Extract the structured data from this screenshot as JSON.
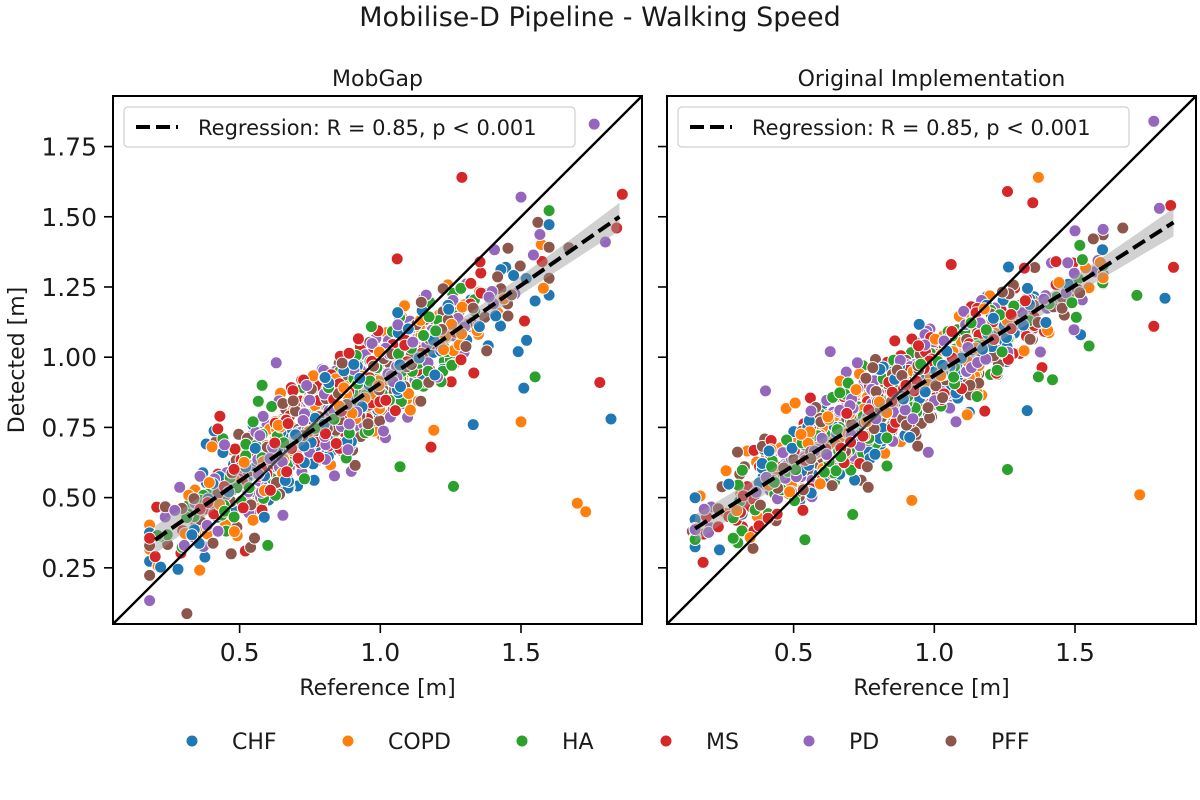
{
  "figure": {
    "title": "Mobilise-D Pipeline - Walking Speed"
  },
  "colors": {
    "CHF": "#1f77b4",
    "COPD": "#ff7f0e",
    "HA": "#2ca02c",
    "MS": "#d62728",
    "PD": "#9467bd",
    "PFF": "#8c564b"
  },
  "legend": {
    "placement": "bottom-center",
    "entries": [
      "CHF",
      "COPD",
      "HA",
      "MS",
      "PD",
      "PFF"
    ]
  },
  "chart_data": [
    {
      "type": "scatter",
      "title": "MobGap",
      "xlabel": "Reference [m]",
      "ylabel": "Detected [m]",
      "xlim": [
        0.05,
        1.93
      ],
      "ylim": [
        0.05,
        1.93
      ],
      "xticks": [
        "0.5",
        "1.0",
        "1.5"
      ],
      "yticks": [
        "0.25",
        "0.50",
        "0.75",
        "1.00",
        "1.25",
        "1.50",
        "1.75"
      ],
      "identity_line": true,
      "regression": {
        "label": "Regression: R = 0.85, p < 0.001",
        "x_start": 0.2,
        "y_start": 0.35,
        "x_end": 1.85,
        "y_end": 1.5,
        "ci_half_width_start": 0.025,
        "ci_half_width_end": 0.05,
        "legend_placement": "upper-left"
      },
      "generated_cluster": {
        "n_per_group": 200,
        "x_mean": 0.85,
        "x_sd": 0.29,
        "slope": 0.7,
        "intercept": 0.21,
        "residual_sd": 0.085,
        "x_range": [
          0.18,
          1.6
        ]
      },
      "outliers": [
        {
          "group": "COPD",
          "x": 1.7,
          "y": 0.48
        },
        {
          "group": "COPD",
          "x": 1.73,
          "y": 0.45
        },
        {
          "group": "CHF",
          "x": 1.82,
          "y": 0.78
        },
        {
          "group": "MS",
          "x": 1.78,
          "y": 0.91
        },
        {
          "group": "PD",
          "x": 1.76,
          "y": 1.83
        },
        {
          "group": "MS",
          "x": 1.86,
          "y": 1.58
        },
        {
          "group": "PD",
          "x": 1.8,
          "y": 1.41
        },
        {
          "group": "MS",
          "x": 1.84,
          "y": 1.46
        },
        {
          "group": "MS",
          "x": 1.29,
          "y": 1.64
        },
        {
          "group": "PD",
          "x": 1.5,
          "y": 1.57
        },
        {
          "group": "PFF",
          "x": 1.56,
          "y": 1.48
        },
        {
          "group": "HA",
          "x": 1.26,
          "y": 0.54
        },
        {
          "group": "HA",
          "x": 1.07,
          "y": 0.61
        },
        {
          "group": "CHF",
          "x": 1.33,
          "y": 0.76
        },
        {
          "group": "COPD",
          "x": 1.5,
          "y": 0.77
        },
        {
          "group": "CHF",
          "x": 1.51,
          "y": 0.89
        },
        {
          "group": "HA",
          "x": 1.55,
          "y": 0.93
        },
        {
          "group": "CHF",
          "x": 1.55,
          "y": 1.2
        },
        {
          "group": "CHF",
          "x": 1.49,
          "y": 1.02
        },
        {
          "group": "CHF",
          "x": 1.52,
          "y": 1.06
        },
        {
          "group": "MS",
          "x": 1.18,
          "y": 0.68
        },
        {
          "group": "COPD",
          "x": 1.19,
          "y": 0.74
        },
        {
          "group": "MS",
          "x": 0.2,
          "y": 0.29
        },
        {
          "group": "MS",
          "x": 0.43,
          "y": 0.79
        },
        {
          "group": "PFF",
          "x": 0.47,
          "y": 0.3
        },
        {
          "group": "MS",
          "x": 0.52,
          "y": 0.31
        },
        {
          "group": "HA",
          "x": 0.6,
          "y": 0.33
        },
        {
          "group": "HA",
          "x": 0.58,
          "y": 0.9
        },
        {
          "group": "PD",
          "x": 0.63,
          "y": 0.98
        },
        {
          "group": "MS",
          "x": 1.06,
          "y": 1.35
        },
        {
          "group": "PFF",
          "x": 1.67,
          "y": 1.39
        }
      ]
    },
    {
      "type": "scatter",
      "title": "Original Implementation",
      "xlabel": "Reference [m]",
      "ylabel": "",
      "xlim": [
        0.05,
        1.93
      ],
      "ylim": [
        0.05,
        1.93
      ],
      "xticks": [
        "0.5",
        "1.0",
        "1.5"
      ],
      "yticks": [],
      "identity_line": true,
      "regression": {
        "label": "Regression: R = 0.85, p < 0.001",
        "x_start": 0.15,
        "y_start": 0.39,
        "x_end": 1.85,
        "y_end": 1.48,
        "ci_half_width_start": 0.025,
        "ci_half_width_end": 0.05,
        "legend_placement": "upper-left"
      },
      "generated_cluster": {
        "n_per_group": 200,
        "x_mean": 0.85,
        "x_sd": 0.29,
        "slope": 0.64,
        "intercept": 0.3,
        "residual_sd": 0.085,
        "x_range": [
          0.15,
          1.6
        ]
      },
      "outliers": [
        {
          "group": "COPD",
          "x": 1.73,
          "y": 0.51
        },
        {
          "group": "PD",
          "x": 1.78,
          "y": 1.84
        },
        {
          "group": "COPD",
          "x": 1.37,
          "y": 1.64
        },
        {
          "group": "MS",
          "x": 1.26,
          "y": 1.59
        },
        {
          "group": "MS",
          "x": 1.35,
          "y": 1.55
        },
        {
          "group": "PD",
          "x": 1.8,
          "y": 1.53
        },
        {
          "group": "MS",
          "x": 1.84,
          "y": 1.54
        },
        {
          "group": "MS",
          "x": 1.85,
          "y": 1.32
        },
        {
          "group": "CHF",
          "x": 1.82,
          "y": 1.21
        },
        {
          "group": "HA",
          "x": 1.72,
          "y": 1.22
        },
        {
          "group": "MS",
          "x": 1.78,
          "y": 1.11
        },
        {
          "group": "HA",
          "x": 1.26,
          "y": 0.6
        },
        {
          "group": "COPD",
          "x": 0.92,
          "y": 0.49
        },
        {
          "group": "CHF",
          "x": 1.33,
          "y": 0.81
        },
        {
          "group": "HA",
          "x": 1.55,
          "y": 1.04
        },
        {
          "group": "CHF",
          "x": 1.52,
          "y": 1.08
        },
        {
          "group": "PD",
          "x": 1.5,
          "y": 1.45
        },
        {
          "group": "PFF",
          "x": 1.67,
          "y": 1.46
        },
        {
          "group": "PD",
          "x": 0.63,
          "y": 1.02
        },
        {
          "group": "PD",
          "x": 0.4,
          "y": 0.88
        },
        {
          "group": "HA",
          "x": 0.54,
          "y": 0.35
        },
        {
          "group": "HA",
          "x": 0.71,
          "y": 0.44
        },
        {
          "group": "MS",
          "x": 0.18,
          "y": 0.37
        },
        {
          "group": "PFF",
          "x": 0.14,
          "y": 0.38
        },
        {
          "group": "MS",
          "x": 1.06,
          "y": 1.33
        },
        {
          "group": "HA",
          "x": 1.37,
          "y": 0.93
        },
        {
          "group": "HA",
          "x": 1.42,
          "y": 0.92
        }
      ]
    }
  ]
}
